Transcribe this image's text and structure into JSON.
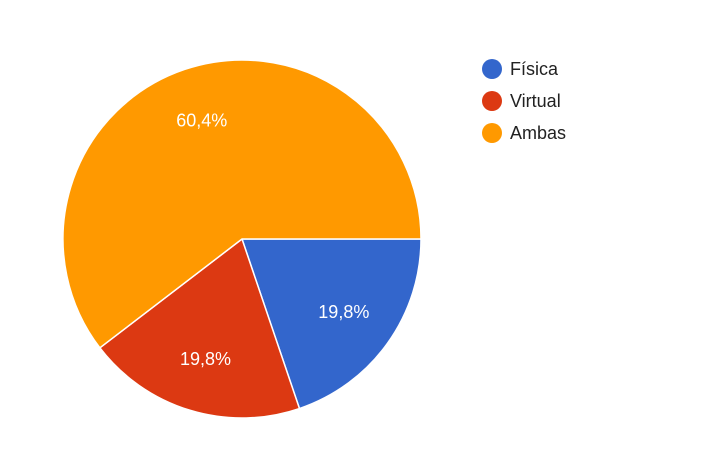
{
  "chart_data": {
    "type": "pie",
    "title": "",
    "legend_position": "right",
    "slices": [
      {
        "name": "Física",
        "value": 19.8,
        "label": "19,8%",
        "color": "#3366cc"
      },
      {
        "name": "Virtual",
        "value": 19.8,
        "label": "19,8%",
        "color": "#dc3912"
      },
      {
        "name": "Ambas",
        "value": 60.4,
        "label": "60,4%",
        "color": "#ff9900"
      }
    ]
  }
}
